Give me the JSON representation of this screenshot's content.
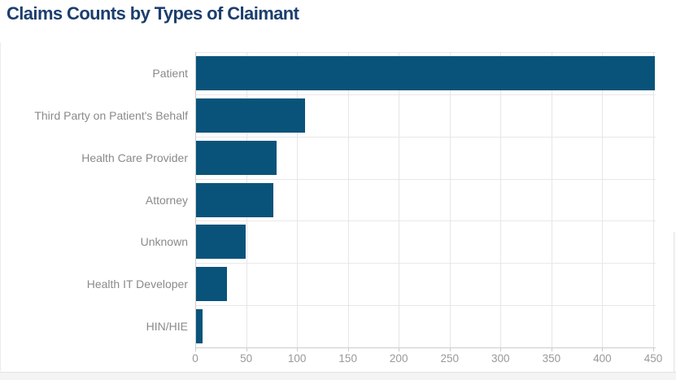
{
  "page": {
    "title": "Claims Counts by Types of Claimant"
  },
  "chart_data": {
    "type": "bar",
    "orientation": "horizontal",
    "title": "Claims Counts by Types of Claimant",
    "categories": [
      "Patient",
      "Third Party on Patient's Behalf",
      "Health Care Provider",
      "Attorney",
      "Unknown",
      "Health IT Developer",
      "HIN/HIE"
    ],
    "values": [
      451,
      107,
      79,
      76,
      49,
      30,
      6
    ],
    "xlabel": "",
    "ylabel": "",
    "xlim": [
      0,
      450
    ],
    "x_ticks": [
      0,
      50,
      100,
      150,
      200,
      250,
      300,
      350,
      400,
      450
    ],
    "grid": true,
    "legend": "none",
    "colors": {
      "bar": "#09537a",
      "title": "#1c3e6e",
      "category_label": "#8a8a8a",
      "tick_label": "#999999",
      "gridline": "#e6e6e6",
      "axis_line": "#cccccc"
    }
  }
}
